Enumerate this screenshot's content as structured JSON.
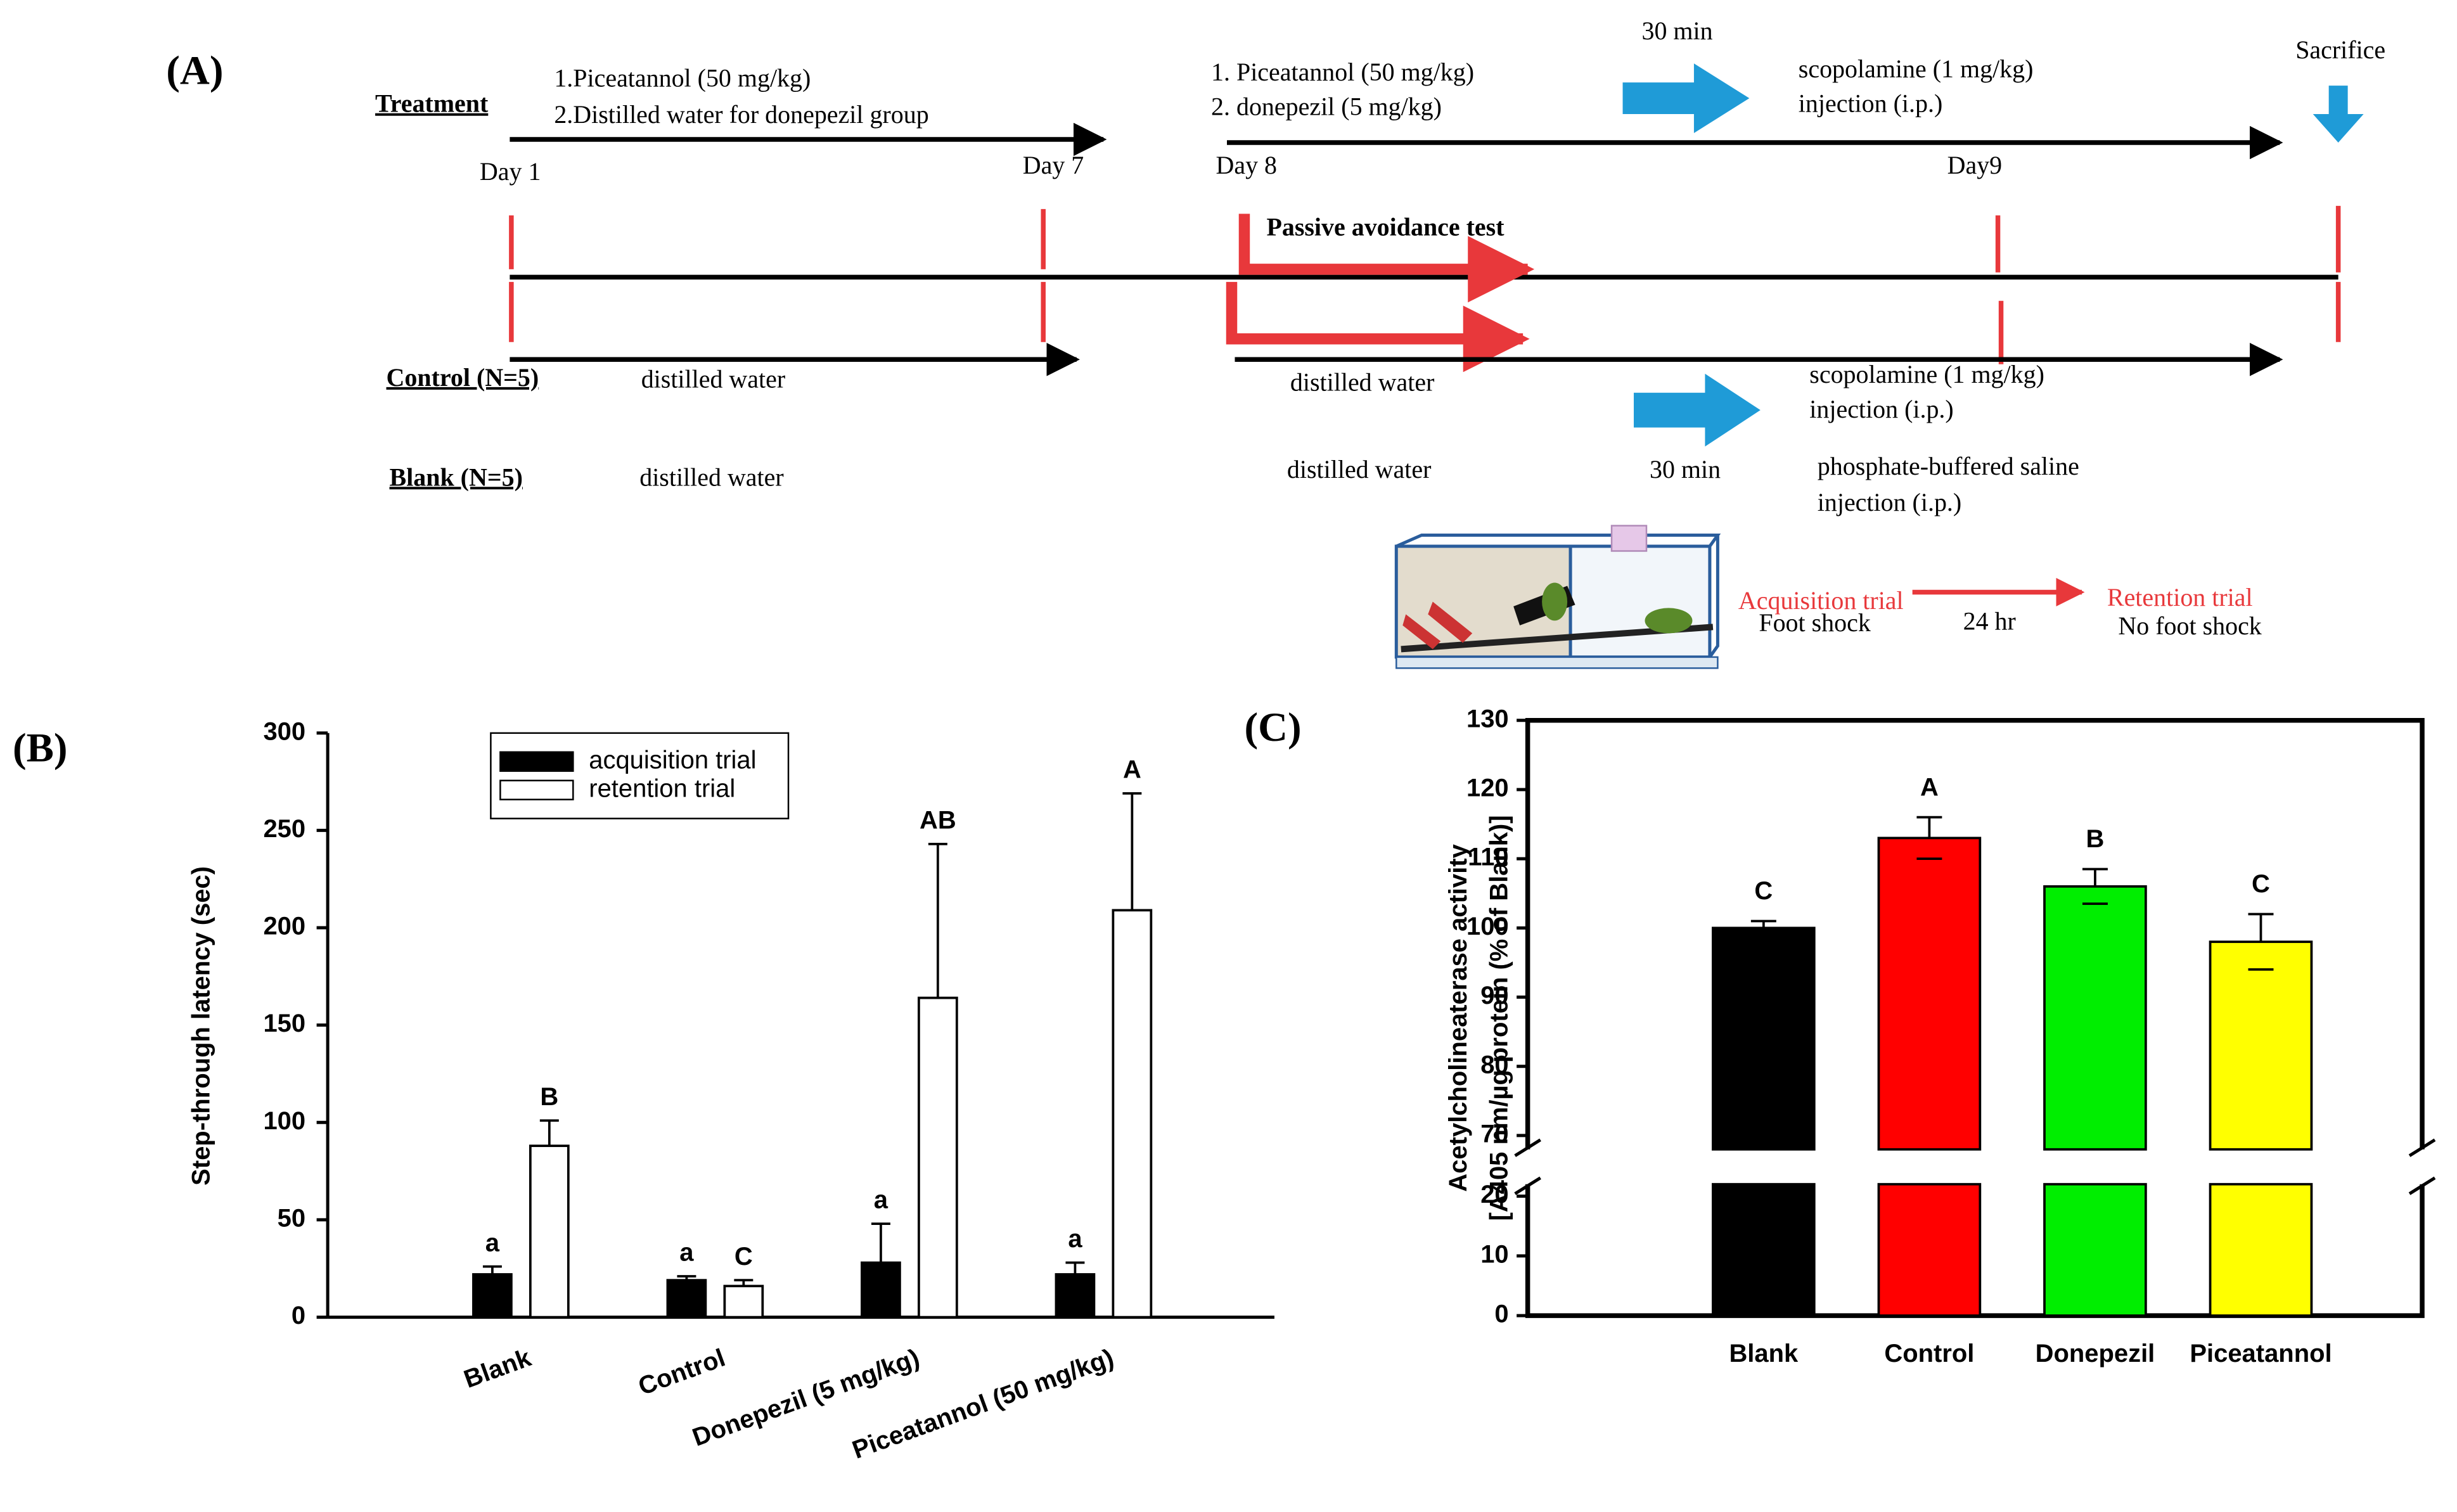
{
  "diagram": {
    "label": "(A)",
    "treatment": {
      "name": "Treatment",
      "phase1": [
        "1.Piceatannol (50 mg/kg)",
        "2.Distilled water for donepezil group"
      ],
      "phase2": [
        "1. Piceatannol (50 mg/kg)",
        "2.  donepezil  (5 mg/kg)"
      ],
      "wait": "30 min",
      "injection": [
        "scopolamine (1 mg/kg)",
        "injection (i.p.)"
      ],
      "sacrifice": "Sacrifice"
    },
    "days": [
      "Day 1",
      "Day 7",
      "Day 8",
      "Day9"
    ],
    "test": "Passive avoidance test",
    "control": {
      "name": "Control (N=5)",
      "phase1": "distilled water",
      "phase2": "distilled water",
      "injection": [
        "scopolamine (1 mg/kg)",
        "injection (i.p.)"
      ],
      "wait": "30 min"
    },
    "blank": {
      "name": "Blank (N=5)",
      "phase1": "distilled water",
      "phase2": "distilled water",
      "injection": [
        "phosphate-buffered saline",
        "injection (i.p.)"
      ]
    },
    "apparatus": {
      "acquisition": "Acquisition trial",
      "acquisition_note": "Foot shock",
      "interval": "24 hr",
      "retention": "Retention trial",
      "retention_note": "No foot shock"
    }
  },
  "chart_data": [
    {
      "type": "bar",
      "label": "(B)",
      "ylabel": "Step-through latency (sec)",
      "categories": [
        "Blank",
        "Control",
        "Donepezil (5 mg/kg)",
        "Piceatannol (50 mg/kg)"
      ],
      "series": [
        {
          "name": "acquisition trial",
          "color": "#000000",
          "values": [
            22,
            19,
            28,
            22
          ],
          "errors": [
            4,
            2,
            20,
            6
          ],
          "letters": [
            "a",
            "a",
            "a",
            "a"
          ]
        },
        {
          "name": "retention trial",
          "color": "#ffffff",
          "values": [
            88,
            16,
            164,
            209
          ],
          "errors": [
            13,
            3,
            79,
            60
          ],
          "letters": [
            "B",
            "C",
            "AB",
            "A"
          ]
        }
      ],
      "ylim": [
        0,
        300
      ],
      "yticks": [
        0,
        50,
        100,
        150,
        200,
        250,
        300
      ],
      "legend": "top"
    },
    {
      "type": "bar",
      "label": "(C)",
      "ylabel": [
        "Acetylcholineaterase activity",
        "[A405 nm/µg protein (% of Blank)]"
      ],
      "categories": [
        "Blank",
        "Control",
        "Donepezil",
        "Piceatannol"
      ],
      "values": [
        100,
        113,
        106,
        98
      ],
      "errors": [
        1,
        3,
        2.5,
        4
      ],
      "letters": [
        "C",
        "A",
        "B",
        "C"
      ],
      "colors": [
        "#000000",
        "#ff0000",
        "#00ee00",
        "#ffff00"
      ],
      "ylim": [
        0,
        130
      ],
      "ybreak": [
        22,
        68
      ],
      "yticks": [
        0,
        10,
        20,
        70,
        80,
        90,
        100,
        110,
        120,
        130
      ]
    }
  ]
}
